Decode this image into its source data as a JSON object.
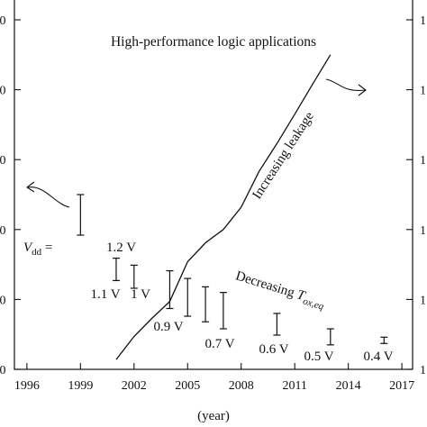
{
  "chart_data": {
    "type": "line",
    "title": "High-performance logic applications",
    "xlabel": "(year)",
    "xlim": [
      1995.3,
      2017.6
    ],
    "ylim_left": [
      0,
      5
    ],
    "left_ticks": [
      0,
      1,
      2,
      3,
      4,
      5
    ],
    "left_tick_labels": [
      "0",
      "0",
      "0",
      "0",
      "0",
      "0"
    ],
    "right_ticks": [
      0,
      1,
      2,
      3,
      4,
      5
    ],
    "right_tick_labels": [
      "1",
      "1",
      "1",
      "1",
      "1",
      "1"
    ],
    "x_ticks": [
      1996,
      1999,
      2002,
      2005,
      2008,
      2011,
      2014,
      2017
    ],
    "x_tick_labels": [
      "1996",
      "1999",
      "2002",
      "2005",
      "2008",
      "2011",
      "2014",
      "2017"
    ],
    "grid": false,
    "leakage_series": {
      "label": "Increasing leakage",
      "x": [
        2001,
        2002,
        2003,
        2004,
        2005,
        2006,
        2007,
        2008,
        2009,
        2010,
        2011,
        2012,
        2013
      ],
      "y": [
        0.14,
        0.47,
        0.73,
        0.97,
        1.54,
        1.81,
        2.0,
        2.32,
        2.83,
        3.23,
        3.65,
        4.08,
        4.5
      ]
    },
    "vdd_ranges": {
      "label": "Decreasing T_ox,eq",
      "prefix_label": "V_dd = ",
      "items": [
        {
          "year": 1999,
          "low": 1.92,
          "high": 2.5,
          "label": "1.2 V"
        },
        {
          "year": 2001,
          "low": 1.27,
          "high": 1.59,
          "label": "1.1 V"
        },
        {
          "year": 2002,
          "low": 1.16,
          "high": 1.49,
          "label": "1 V"
        },
        {
          "year": 2004,
          "low": 0.87,
          "high": 1.41,
          "label": "0.9 V"
        },
        {
          "year": 2005,
          "low": 0.76,
          "high": 1.3,
          "label": "0.9 V"
        },
        {
          "year": 2006,
          "low": 0.68,
          "high": 1.18,
          "label": "0.7 V"
        },
        {
          "year": 2007,
          "low": 0.58,
          "high": 1.1,
          "label": "0.7 V"
        },
        {
          "year": 2010,
          "low": 0.49,
          "high": 0.8,
          "label": "0.6 V"
        },
        {
          "year": 2013,
          "low": 0.35,
          "high": 0.58,
          "label": "0.5 V"
        },
        {
          "year": 2016,
          "low": 0.37,
          "high": 0.46,
          "label": "0.4 V"
        }
      ]
    }
  }
}
